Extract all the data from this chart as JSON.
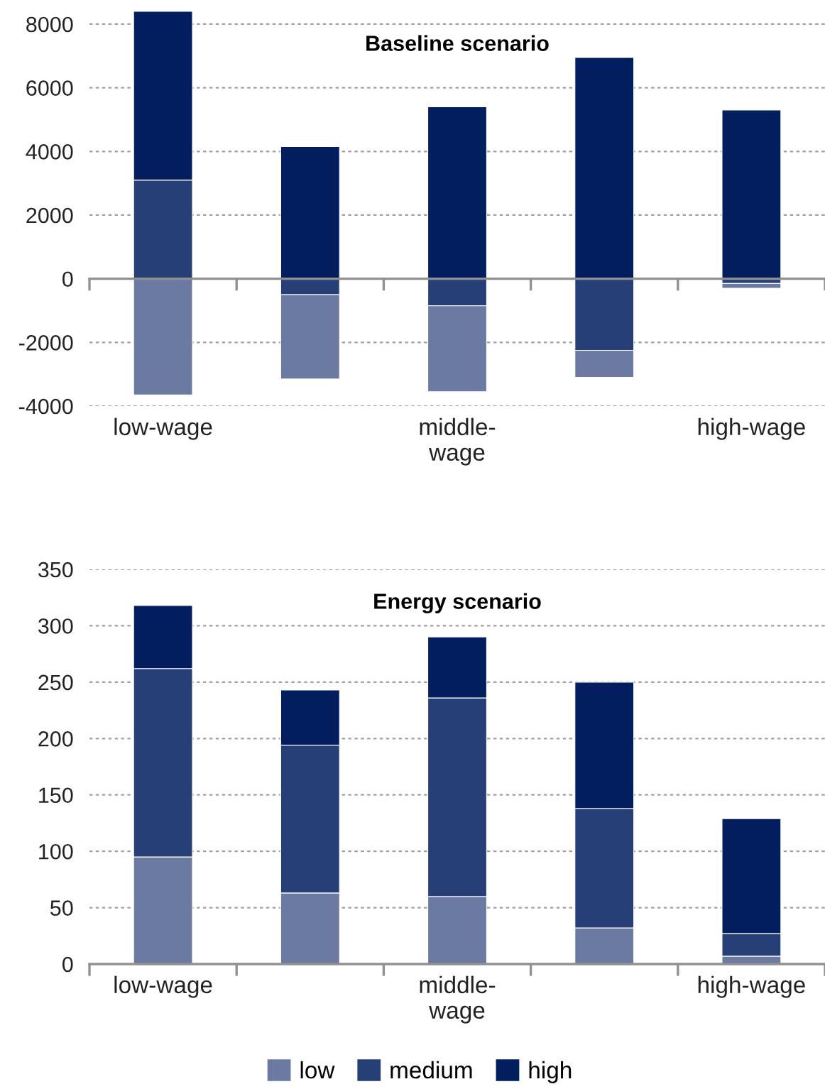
{
  "chart_data": [
    {
      "type": "bar",
      "title": "Baseline scenario",
      "stacked": true,
      "categories": [
        "low-wage",
        null,
        "middle-\nwage",
        null,
        "high-wage"
      ],
      "ylim": [
        -4000,
        8400
      ],
      "yticks": [
        -4000,
        -2000,
        0,
        2000,
        4000,
        6000,
        8000
      ],
      "grid": "y",
      "series": [
        {
          "color": "#263f77",
          "values": [
            3100,
            -500,
            -850,
            -2250,
            -150
          ]
        },
        {
          "color": "#6a7aa0",
          "values": [
            -3650,
            -2650,
            -2700,
            -850,
            -150
          ]
        },
        {
          "color": "#031e5e",
          "values": [
            5300,
            4150,
            5400,
            6950,
            5300
          ]
        }
      ]
    },
    {
      "type": "bar",
      "title": "Energy scenario",
      "stacked": true,
      "categories": [
        "low-wage",
        null,
        "middle-\nwage",
        null,
        "high-wage"
      ],
      "ylim": [
        0,
        350
      ],
      "yticks": [
        0,
        50,
        100,
        150,
        200,
        250,
        300,
        350
      ],
      "grid": "y",
      "legend": "bottom",
      "series": [
        {
          "name": "low",
          "color": "#6a7aa0",
          "values": [
            95,
            63,
            60,
            32,
            7
          ]
        },
        {
          "name": "medium",
          "color": "#263f77",
          "values": [
            167,
            131,
            176,
            106,
            20
          ]
        },
        {
          "name": "high",
          "color": "#031e5e",
          "values": [
            56,
            49,
            54,
            112,
            102
          ]
        }
      ]
    }
  ]
}
